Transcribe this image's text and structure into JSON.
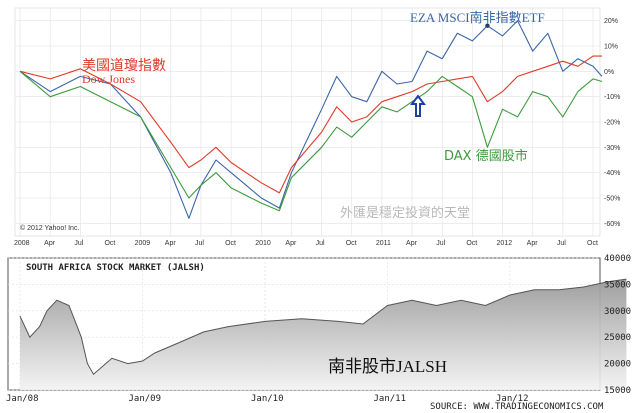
{
  "chart_data": [
    {
      "type": "line",
      "x_ticks": [
        "2008",
        "Apr",
        "Jul",
        "Oct",
        "2009",
        "Apr",
        "Jul",
        "Oct",
        "2010",
        "Apr",
        "Jul",
        "Oct",
        "2011",
        "Apr",
        "Jul",
        "Oct",
        "2012",
        "Apr",
        "Jul",
        "Oct"
      ],
      "y_ticks": [
        "20%",
        "10%",
        "0%",
        "-10%",
        "-20%",
        "-30%",
        "-40%",
        "-50%",
        "-60%"
      ],
      "ylim": [
        -65,
        25
      ],
      "grid": true,
      "copyright": "© 2012 Yahoo! Inc.",
      "labels": {
        "eza": "EZA MSCI南非指數ETF",
        "dow_cn": "美國道瓊指數",
        "dow_en": "Dow Jones",
        "dax": "DAX 德國股市",
        "watermark": "外匯是穩定投資的天堂"
      },
      "colors": {
        "eza": "#3a66a8",
        "dow": "#e03a2a",
        "dax": "#3d9a3d"
      },
      "series": [
        {
          "key": "eza",
          "x": [
            0,
            1,
            2,
            3,
            4,
            5,
            5.6,
            6,
            6.5,
            7,
            7.5,
            8,
            8.6,
            9,
            10,
            10.5,
            11,
            11.5,
            12,
            12.5,
            13,
            13.5,
            14,
            14.5,
            15,
            15.5,
            16,
            16.5,
            17,
            17.5,
            18,
            18.5,
            19,
            19.3
          ],
          "values": [
            0,
            -8,
            -2,
            -5,
            -18,
            -40,
            -58,
            -45,
            -35,
            -40,
            -45,
            -50,
            -54,
            -40,
            -15,
            -2,
            -10,
            -12,
            0,
            -5,
            -4,
            8,
            5,
            15,
            12,
            18,
            14,
            20,
            8,
            15,
            0,
            5,
            2,
            -2
          ]
        },
        {
          "key": "dow",
          "x": [
            0,
            1,
            2,
            3,
            4,
            5,
            5.6,
            6,
            6.5,
            7,
            7.5,
            8,
            8.6,
            9,
            10,
            10.5,
            11,
            11.5,
            12,
            12.5,
            13,
            13.5,
            14,
            14.5,
            15,
            15.5,
            16,
            16.5,
            17,
            17.5,
            18,
            18.5,
            19,
            19.3
          ],
          "values": [
            0,
            -3,
            1,
            -5,
            -12,
            -28,
            -38,
            -35,
            -30,
            -36,
            -40,
            -44,
            -48,
            -38,
            -24,
            -14,
            -20,
            -18,
            -12,
            -10,
            -8,
            -5,
            -4,
            -3,
            -2,
            -12,
            -8,
            -2,
            0,
            2,
            4,
            2,
            6,
            6
          ]
        },
        {
          "key": "dax",
          "x": [
            0,
            1,
            2,
            3,
            4,
            5,
            5.6,
            6,
            6.5,
            7,
            7.5,
            8,
            8.6,
            9,
            10,
            10.5,
            11,
            11.5,
            12,
            12.5,
            13,
            13.5,
            14,
            14.5,
            15,
            15.5,
            16,
            16.5,
            17,
            17.5,
            18,
            18.5,
            19,
            19.3
          ],
          "values": [
            0,
            -10,
            -6,
            -12,
            -18,
            -38,
            -50,
            -45,
            -40,
            -46,
            -49,
            -52,
            -55,
            -42,
            -30,
            -22,
            -26,
            -20,
            -14,
            -16,
            -12,
            -8,
            -2,
            -6,
            -10,
            -30,
            -15,
            -18,
            -8,
            -10,
            -18,
            -8,
            -3,
            -4
          ]
        }
      ]
    },
    {
      "type": "area",
      "title": "SOUTH AFRICA STOCK MARKET (JALSH)",
      "x_ticks": [
        "Jan/08",
        "Jan/09",
        "Jan/10",
        "Jan/11",
        "Jan/12"
      ],
      "y_ticks": [
        "40000",
        "35000",
        "30000",
        "25000",
        "20000",
        "15000"
      ],
      "ylim": [
        15000,
        40000
      ],
      "overlay_label": "南非股市JALSH",
      "source": "SOURCE: WWW.TRADINGECONOMICS.COM",
      "color": "#9a9a9a",
      "x": [
        0,
        0.08,
        0.16,
        0.22,
        0.3,
        0.4,
        0.5,
        0.55,
        0.6,
        0.75,
        0.88,
        1.0,
        1.1,
        1.3,
        1.5,
        1.7,
        2.0,
        2.3,
        2.6,
        2.8,
        3.0,
        3.2,
        3.4,
        3.6,
        3.8,
        4.0,
        4.2,
        4.4,
        4.6,
        4.8,
        4.95
      ],
      "values": [
        29000,
        25000,
        27000,
        30000,
        32000,
        31000,
        25000,
        20000,
        18000,
        21000,
        20000,
        20500,
        22000,
        24000,
        26000,
        27000,
        28000,
        28500,
        28000,
        27500,
        31000,
        32000,
        31000,
        32000,
        31000,
        33000,
        34000,
        34000,
        34500,
        35500,
        36000
      ]
    }
  ]
}
